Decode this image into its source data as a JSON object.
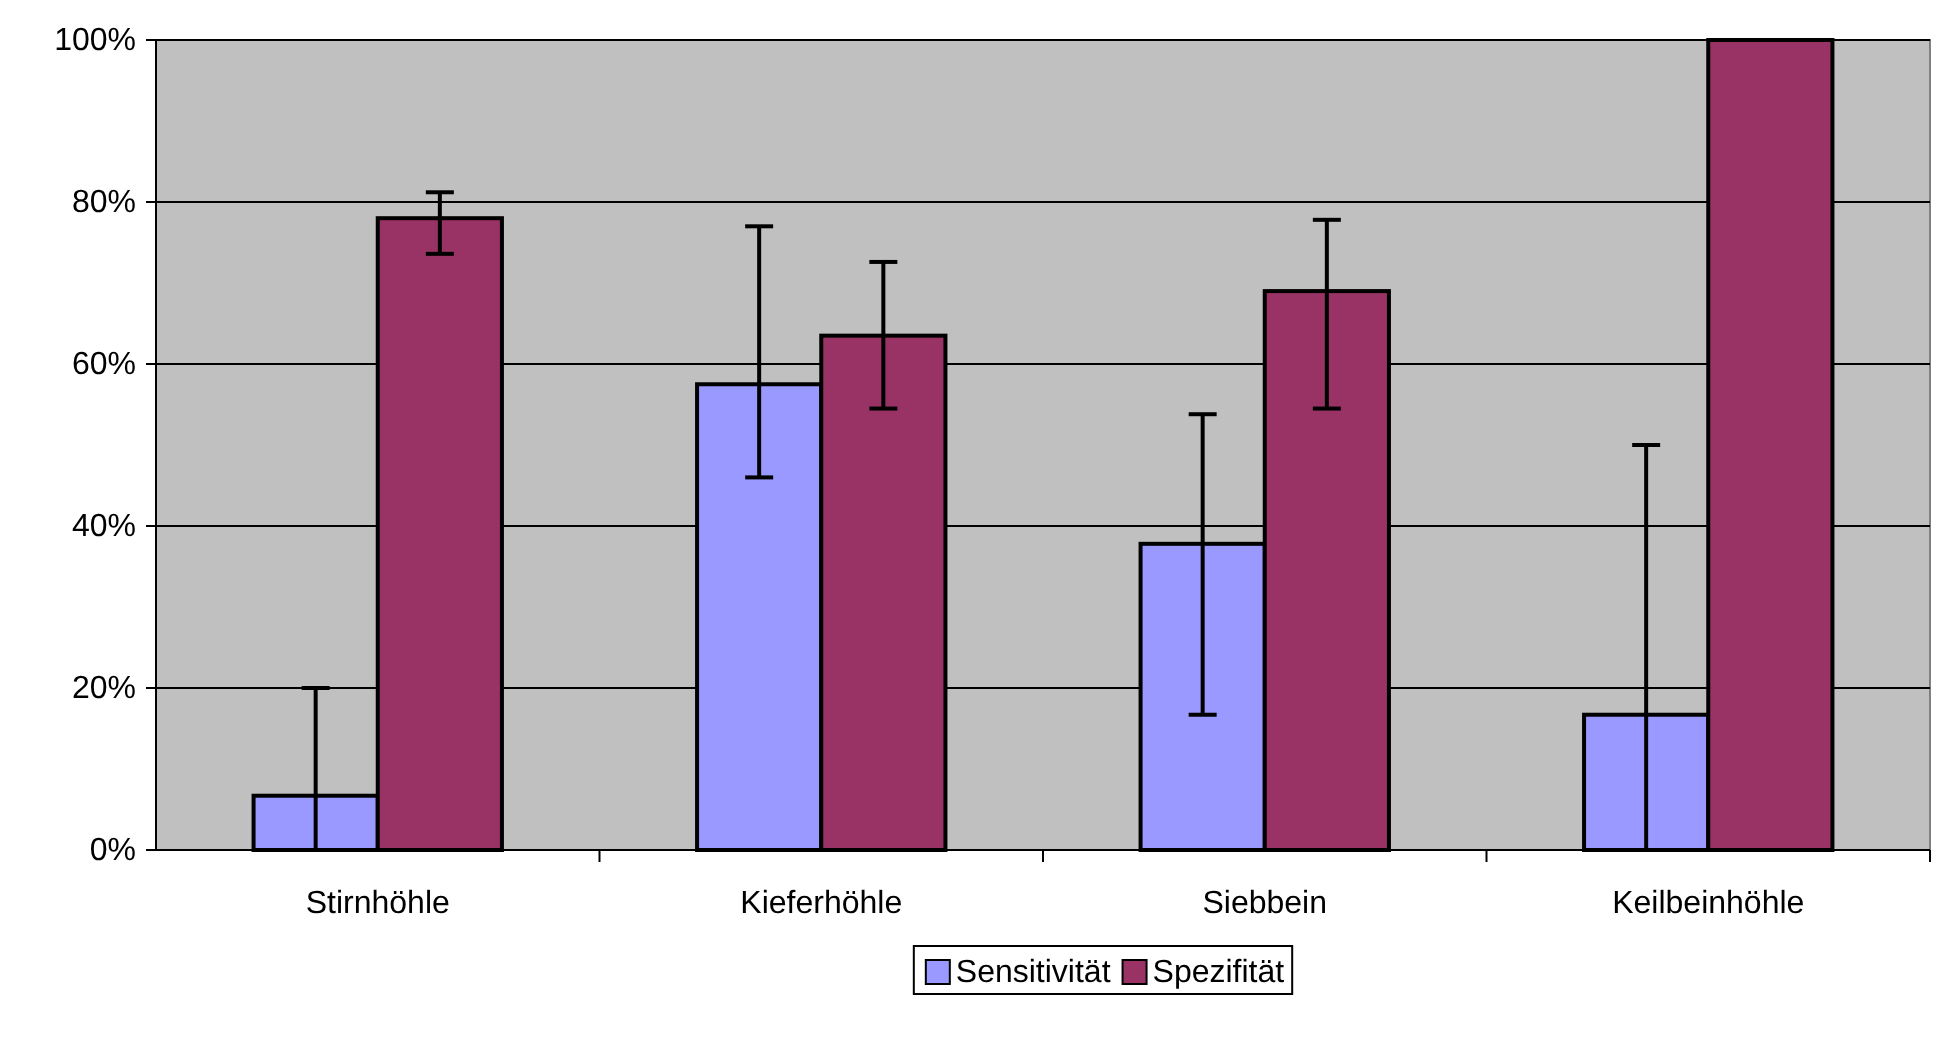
{
  "chart_data": {
    "type": "bar",
    "categories": [
      "Stirnhöhle",
      "Kieferhöhle",
      "Siebbein",
      "Keilbeinhöhle"
    ],
    "series": [
      {
        "name": "Sensitivität",
        "color": "#9999ff",
        "values": [
          6.7,
          57.5,
          37.8,
          16.7
        ],
        "errors": [
          [
            0,
            20
          ],
          [
            46,
            77
          ],
          [
            16.7,
            53.8
          ],
          [
            0,
            50
          ]
        ]
      },
      {
        "name": "Spezifität",
        "color": "#993366",
        "values": [
          78,
          63.5,
          69,
          100
        ],
        "errors": [
          [
            73.6,
            81.2
          ],
          [
            54.5,
            72.6
          ],
          [
            54.5,
            77.8
          ],
          [
            100,
            100
          ]
        ]
      }
    ],
    "ylim": [
      0,
      100
    ],
    "yticks": [
      {
        "value": 0,
        "label": "0%"
      },
      {
        "value": 20,
        "label": "20%"
      },
      {
        "value": 40,
        "label": "40%"
      },
      {
        "value": 60,
        "label": "60%"
      },
      {
        "value": 80,
        "label": "80%"
      },
      {
        "value": 100,
        "label": "100%"
      }
    ],
    "grid": "y",
    "legend": "bottom"
  }
}
